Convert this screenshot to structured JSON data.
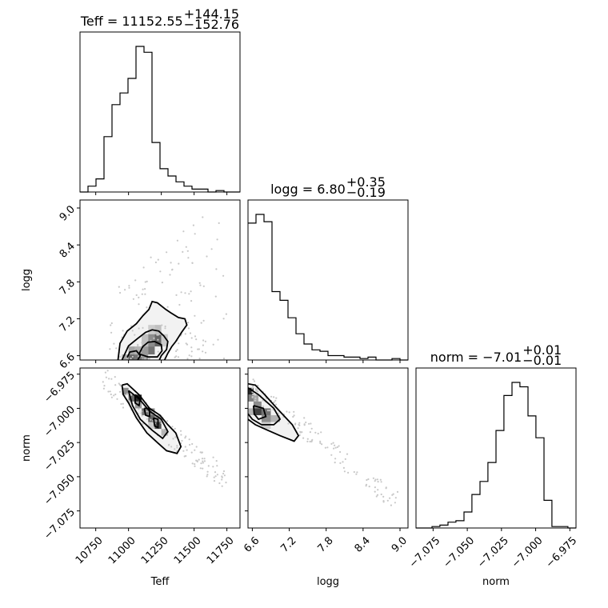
{
  "chart_data": {
    "type": "corner",
    "parameters": [
      "Teff",
      "logg",
      "norm"
    ],
    "titles": [
      {
        "param": "Teff",
        "prefix": "Teff = ",
        "value": "11152.55",
        "plus": "+144.15",
        "minus": "−152.76"
      },
      {
        "param": "logg",
        "prefix": "logg = ",
        "value": "6.80",
        "plus": "+0.35",
        "minus": "−0.19"
      },
      {
        "param": "norm",
        "prefix": "norm = ",
        "value": "−7.01",
        "plus": "+0.01",
        "minus": "−0.01"
      }
    ],
    "ranges": {
      "Teff": [
        10630,
        11850
      ],
      "logg": [
        6.53,
        9.13
      ],
      "norm": [
        -7.0875,
        -6.9705
      ]
    },
    "ticks": {
      "Teff": [
        10750,
        11000,
        11250,
        11500,
        11750
      ],
      "logg": [
        6.6,
        7.2,
        7.8,
        8.4,
        9.0
      ],
      "norm": [
        -7.075,
        -7.05,
        -7.025,
        -7.0,
        -6.975
      ]
    },
    "tick_labels": {
      "Teff": [
        "10750",
        "11000",
        "11250",
        "11500",
        "11750"
      ],
      "logg": [
        "6.6",
        "7.2",
        "7.8",
        "8.4",
        "9.0"
      ],
      "norm": [
        "−7.075",
        "−7.050",
        "−7.025",
        "−7.000",
        "−6.975"
      ]
    },
    "histograms": {
      "Teff": {
        "edges": [
          10630,
          10691,
          10752,
          10813,
          10874,
          10935,
          10996,
          11057,
          11118,
          11179,
          11240,
          11301,
          11362,
          11423,
          11484,
          11545,
          11606,
          11667,
          11728,
          11789,
          11850
        ],
        "counts": [
          0.0,
          0.04,
          0.09,
          0.38,
          0.6,
          0.68,
          0.78,
          1.0,
          0.96,
          0.34,
          0.16,
          0.11,
          0.07,
          0.04,
          0.02,
          0.02,
          0.0,
          0.01,
          0.0,
          0.0
        ]
      },
      "logg": {
        "edges": [
          6.53,
          6.66,
          6.79,
          6.92,
          7.05,
          7.18,
          7.31,
          7.44,
          7.57,
          7.7,
          7.83,
          7.96,
          8.09,
          8.22,
          8.35,
          8.48,
          8.61,
          8.74,
          8.87,
          9.0,
          9.13
        ],
        "counts": [
          0.94,
          1.0,
          0.95,
          0.47,
          0.41,
          0.29,
          0.18,
          0.11,
          0.07,
          0.06,
          0.03,
          0.03,
          0.02,
          0.02,
          0.01,
          0.02,
          0.0,
          0.0,
          0.01,
          0.0
        ]
      },
      "norm": {
        "edges": [
          -7.0875,
          -7.0817,
          -7.0758,
          -7.07,
          -7.0641,
          -7.0583,
          -7.0524,
          -7.0466,
          -7.0407,
          -7.0349,
          -7.029,
          -7.0232,
          -7.0173,
          -7.0115,
          -7.0056,
          -6.9998,
          -6.9939,
          -6.9881,
          -6.9822,
          -6.9764,
          -6.9705
        ],
        "counts": [
          0.0,
          0.0,
          0.01,
          0.02,
          0.04,
          0.05,
          0.11,
          0.23,
          0.32,
          0.45,
          0.67,
          0.91,
          1.0,
          0.97,
          0.77,
          0.62,
          0.19,
          0.01,
          0.01,
          0.0
        ]
      }
    },
    "pairs": [
      {
        "x": "Teff",
        "y": "logg",
        "density_cells": [
          {
            "x": [
              10950,
              11000
            ],
            "y": [
              6.53,
              6.62
            ],
            "level": 0.35
          },
          {
            "x": [
              11000,
              11050
            ],
            "y": [
              6.53,
              6.62
            ],
            "level": 0.6
          },
          {
            "x": [
              11050,
              11100
            ],
            "y": [
              6.53,
              6.62
            ],
            "level": 0.55
          },
          {
            "x": [
              11100,
              11150
            ],
            "y": [
              6.53,
              6.62
            ],
            "level": 0.4
          },
          {
            "x": [
              11000,
              11050
            ],
            "y": [
              6.62,
              6.75
            ],
            "level": 0.35
          },
          {
            "x": [
              11050,
              11100
            ],
            "y": [
              6.62,
              6.75
            ],
            "level": 0.3
          },
          {
            "x": [
              11100,
              11150
            ],
            "y": [
              6.62,
              6.75
            ],
            "level": 0.4
          },
          {
            "x": [
              11150,
              11200
            ],
            "y": [
              6.62,
              6.75
            ],
            "level": 0.55
          },
          {
            "x": [
              11100,
              11150
            ],
            "y": [
              6.75,
              6.95
            ],
            "level": 0.25
          },
          {
            "x": [
              11150,
              11200
            ],
            "y": [
              6.75,
              6.95
            ],
            "level": 0.45
          },
          {
            "x": [
              11200,
              11250
            ],
            "y": [
              6.75,
              6.95
            ],
            "level": 0.6
          },
          {
            "x": [
              11200,
              11250
            ],
            "y": [
              6.95,
              7.1
            ],
            "level": 0.25
          },
          {
            "x": [
              11150,
              11200
            ],
            "y": [
              6.95,
              7.1
            ],
            "level": 0.2
          },
          {
            "x": [
              11250,
              11300
            ],
            "y": [
              6.75,
              6.95
            ],
            "level": 0.2
          }
        ],
        "contours": [
          [
            [
              10920,
              6.53
            ],
            [
              10935,
              6.8
            ],
            [
              10990,
              7.0
            ],
            [
              11060,
              7.12
            ],
            [
              11110,
              7.25
            ],
            [
              11155,
              7.35
            ],
            [
              11180,
              7.48
            ],
            [
              11220,
              7.46
            ],
            [
              11285,
              7.35
            ],
            [
              11320,
              7.3
            ],
            [
              11380,
              7.22
            ],
            [
              11430,
              7.2
            ],
            [
              11445,
              7.1
            ],
            [
              11405,
              6.98
            ],
            [
              11360,
              6.83
            ],
            [
              11330,
              6.75
            ],
            [
              11300,
              6.64
            ],
            [
              11275,
              6.53
            ]
          ],
          [
            [
              10950,
              6.53
            ],
            [
              11000,
              6.76
            ],
            [
              11070,
              6.88
            ],
            [
              11130,
              6.98
            ],
            [
              11180,
              7.02
            ],
            [
              11230,
              7.0
            ],
            [
              11270,
              6.92
            ],
            [
              11300,
              6.83
            ],
            [
              11290,
              6.7
            ],
            [
              11250,
              6.6
            ],
            [
              11235,
              6.53
            ]
          ],
          [
            [
              11080,
              6.63
            ],
            [
              11110,
              6.75
            ],
            [
              11150,
              6.82
            ],
            [
              11200,
              6.83
            ],
            [
              11250,
              6.78
            ],
            [
              11255,
              6.68
            ],
            [
              11220,
              6.58
            ],
            [
              11150,
              6.58
            ],
            [
              11080,
              6.63
            ]
          ],
          [
            [
              10990,
              6.57
            ],
            [
              11010,
              6.66
            ],
            [
              11060,
              6.68
            ],
            [
              11090,
              6.6
            ],
            [
              11070,
              6.53
            ]
          ]
        ],
        "scatter_outside": true
      },
      {
        "x": "Teff",
        "y": "norm",
        "density_cells": [
          {
            "x": [
              10950,
              11000
            ],
            "y": [
              -6.99,
              -6.985
            ],
            "level": 0.45
          },
          {
            "x": [
              11000,
              11050
            ],
            "y": [
              -6.995,
              -6.99
            ],
            "level": 0.6
          },
          {
            "x": [
              11050,
              11100
            ],
            "y": [
              -6.995,
              -6.99
            ],
            "level": 0.85
          },
          {
            "x": [
              11050,
              11100
            ],
            "y": [
              -7.0,
              -6.995
            ],
            "level": 0.4
          },
          {
            "x": [
              11100,
              11150
            ],
            "y": [
              -7.005,
              -7.0
            ],
            "level": 0.55
          },
          {
            "x": [
              11150,
              11200
            ],
            "y": [
              -7.005,
              -7.0
            ],
            "level": 0.45
          },
          {
            "x": [
              11150,
              11200
            ],
            "y": [
              -7.01,
              -7.005
            ],
            "level": 0.6
          },
          {
            "x": [
              11200,
              11250
            ],
            "y": [
              -7.01,
              -7.005
            ],
            "level": 0.35
          },
          {
            "x": [
              11200,
              11250
            ],
            "y": [
              -7.015,
              -7.01
            ],
            "level": 0.7
          },
          {
            "x": [
              11250,
              11300
            ],
            "y": [
              -7.02,
              -7.015
            ],
            "level": 0.3
          },
          {
            "x": [
              11150,
              11200
            ],
            "y": [
              -7.015,
              -7.01
            ],
            "level": 0.2
          }
        ],
        "contours": [
          [
            [
              10950,
              -6.983
            ],
            [
              10990,
              -6.982
            ],
            [
              11080,
              -6.99
            ],
            [
              11160,
              -7.0
            ],
            [
              11240,
              -7.005
            ],
            [
              11300,
              -7.012
            ],
            [
              11360,
              -7.018
            ],
            [
              11400,
              -7.028
            ],
            [
              11370,
              -7.033
            ],
            [
              11290,
              -7.031
            ],
            [
              11220,
              -7.025
            ],
            [
              11140,
              -7.018
            ],
            [
              11060,
              -7.007
            ],
            [
              11000,
              -6.996
            ],
            [
              10960,
              -6.99
            ],
            [
              10950,
              -6.983
            ]
          ],
          [
            [
              11000,
              -6.987
            ],
            [
              11080,
              -6.993
            ],
            [
              11160,
              -7.002
            ],
            [
              11250,
              -7.008
            ],
            [
              11300,
              -7.017
            ],
            [
              11260,
              -7.022
            ],
            [
              11180,
              -7.016
            ],
            [
              11090,
              -7.008
            ],
            [
              11030,
              -6.998
            ],
            [
              11000,
              -6.987
            ]
          ],
          [
            [
              11050,
              -6.99
            ],
            [
              11090,
              -6.993
            ],
            [
              11080,
              -6.998
            ],
            [
              11050,
              -6.996
            ],
            [
              11050,
              -6.99
            ]
          ],
          [
            [
              11120,
              -7.0
            ],
            [
              11160,
              -7.0
            ],
            [
              11160,
              -7.006
            ],
            [
              11130,
              -7.005
            ],
            [
              11120,
              -7.0
            ]
          ],
          [
            [
              11190,
              -7.007
            ],
            [
              11225,
              -7.008
            ],
            [
              11225,
              -7.014
            ],
            [
              11200,
              -7.013
            ],
            [
              11190,
              -7.007
            ]
          ]
        ],
        "scatter_outside": true
      },
      {
        "x": "logg",
        "y": "norm",
        "density_cells": [
          {
            "x": [
              6.53,
              6.62
            ],
            "y": [
              -6.99,
              -6.985
            ],
            "level": 0.85
          },
          {
            "x": [
              6.53,
              6.62
            ],
            "y": [
              -6.995,
              -6.99
            ],
            "level": 0.5
          },
          {
            "x": [
              6.62,
              6.7
            ],
            "y": [
              -6.995,
              -6.99
            ],
            "level": 0.35
          },
          {
            "x": [
              6.62,
              6.75
            ],
            "y": [
              -7.0,
              -6.995
            ],
            "level": 0.45
          },
          {
            "x": [
              6.62,
              6.75
            ],
            "y": [
              -7.005,
              -7.0
            ],
            "level": 0.75
          },
          {
            "x": [
              6.75,
              6.9
            ],
            "y": [
              -7.005,
              -7.0
            ],
            "level": 0.55
          },
          {
            "x": [
              6.53,
              6.62
            ],
            "y": [
              -7.005,
              -7.0
            ],
            "level": 0.3
          },
          {
            "x": [
              6.75,
              6.9
            ],
            "y": [
              -7.01,
              -7.005
            ],
            "level": 0.45
          },
          {
            "x": [
              6.9,
              7.05
            ],
            "y": [
              -7.01,
              -7.005
            ],
            "level": 0.3
          },
          {
            "x": [
              6.75,
              6.9
            ],
            "y": [
              -7.015,
              -7.01
            ],
            "level": 0.2
          }
        ],
        "contours": [
          [
            [
              6.53,
              -6.982
            ],
            [
              6.65,
              -6.983
            ],
            [
              6.8,
              -6.99
            ],
            [
              7.0,
              -7.0
            ],
            [
              7.25,
              -7.012
            ],
            [
              7.35,
              -7.02
            ],
            [
              7.28,
              -7.024
            ],
            [
              7.05,
              -7.02
            ],
            [
              6.85,
              -7.016
            ],
            [
              6.65,
              -7.012
            ],
            [
              6.53,
              -7.008
            ]
          ],
          [
            [
              6.53,
              -6.985
            ],
            [
              6.7,
              -6.99
            ],
            [
              6.95,
              -7.0
            ],
            [
              7.05,
              -7.008
            ],
            [
              6.95,
              -7.012
            ],
            [
              6.75,
              -7.012
            ],
            [
              6.6,
              -7.008
            ],
            [
              6.53,
              -7.004
            ]
          ],
          [
            [
              6.62,
              -6.998
            ],
            [
              6.78,
              -7.0
            ],
            [
              6.82,
              -7.006
            ],
            [
              6.7,
              -7.008
            ],
            [
              6.63,
              -7.004
            ],
            [
              6.62,
              -6.998
            ]
          ]
        ],
        "scatter_outside": true
      }
    ],
    "xlabels": [
      "Teff",
      "logg",
      "norm"
    ],
    "ylabels": [
      "",
      "logg",
      "norm"
    ]
  }
}
